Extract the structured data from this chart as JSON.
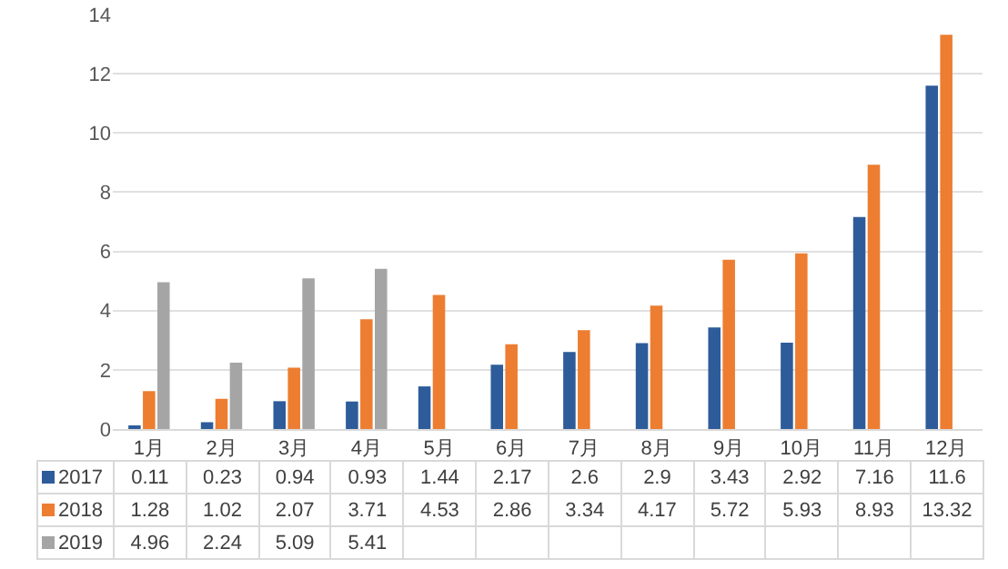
{
  "chart_data": {
    "type": "bar",
    "categories": [
      "1月",
      "2月",
      "3月",
      "4月",
      "5月",
      "6月",
      "7月",
      "8月",
      "9月",
      "10月",
      "11月",
      "12月"
    ],
    "series": [
      {
        "name": "2017",
        "color": "#2e5c9a",
        "values": [
          0.11,
          0.23,
          0.94,
          0.93,
          1.44,
          2.17,
          2.6,
          2.9,
          3.43,
          2.92,
          7.16,
          11.6
        ]
      },
      {
        "name": "2018",
        "color": "#ed7d31",
        "values": [
          1.28,
          1.02,
          2.07,
          3.71,
          4.53,
          2.86,
          3.34,
          4.17,
          5.72,
          5.93,
          8.93,
          13.32
        ]
      },
      {
        "name": "2019",
        "color": "#a5a5a5",
        "values": [
          4.96,
          2.24,
          5.09,
          5.41,
          null,
          null,
          null,
          null,
          null,
          null,
          null,
          null
        ]
      }
    ],
    "ylim": [
      0,
      14
    ],
    "yticks": [
      0,
      2,
      4,
      6,
      8,
      10,
      12,
      14
    ],
    "grid": "y",
    "data_labels": true,
    "legend": "bottom left"
  }
}
